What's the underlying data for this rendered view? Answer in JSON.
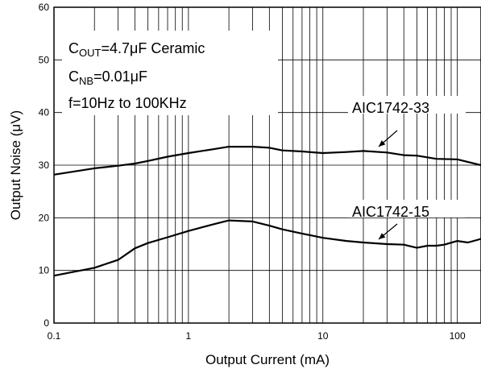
{
  "chart_data": {
    "type": "line",
    "xscale": "log",
    "xlim": [
      0.1,
      150
    ],
    "ylim": [
      0,
      60
    ],
    "xlabel": "Output Current (mA)",
    "ylabel": "Output Noise (μV)",
    "x_ticks": [
      {
        "value": 0.1,
        "label": "0.1"
      },
      {
        "value": 1,
        "label": "1"
      },
      {
        "value": 10,
        "label": "10"
      },
      {
        "value": 100,
        "label": "100"
      }
    ],
    "y_ticks": [
      0,
      10,
      20,
      30,
      40,
      50,
      60
    ],
    "grid": true,
    "annotations": [
      {
        "main": "C",
        "sub": "OUT",
        "rest": "=4.7μF Ceramic"
      },
      {
        "main": "C",
        "sub": "NB",
        "rest": "=0.01μF"
      },
      {
        "main": "f=10Hz to 100KHz",
        "sub": "",
        "rest": ""
      }
    ],
    "series": [
      {
        "name": "AIC1742-33",
        "x": [
          0.1,
          0.2,
          0.3,
          0.4,
          0.5,
          0.7,
          1,
          1.5,
          2,
          3,
          4,
          5,
          7,
          10,
          15,
          20,
          30,
          40,
          50,
          70,
          100,
          150
        ],
        "y": [
          28.2,
          29.4,
          29.9,
          30.3,
          30.8,
          31.6,
          32.3,
          33.0,
          33.5,
          33.5,
          33.3,
          32.8,
          32.6,
          32.3,
          32.5,
          32.7,
          32.4,
          31.9,
          31.8,
          31.2,
          31.1,
          30.0
        ]
      },
      {
        "name": "AIC1742-15",
        "x": [
          0.1,
          0.2,
          0.3,
          0.4,
          0.5,
          0.7,
          1,
          1.5,
          2,
          3,
          4,
          5,
          7,
          10,
          15,
          20,
          30,
          40,
          50,
          60,
          70,
          80,
          100,
          120,
          150
        ],
        "y": [
          9.0,
          10.5,
          12.0,
          14.2,
          15.2,
          16.3,
          17.5,
          18.7,
          19.5,
          19.3,
          18.5,
          17.8,
          17.0,
          16.2,
          15.6,
          15.3,
          15.0,
          14.9,
          14.3,
          14.7,
          14.7,
          14.9,
          15.6,
          15.3,
          16.0
        ]
      }
    ]
  }
}
